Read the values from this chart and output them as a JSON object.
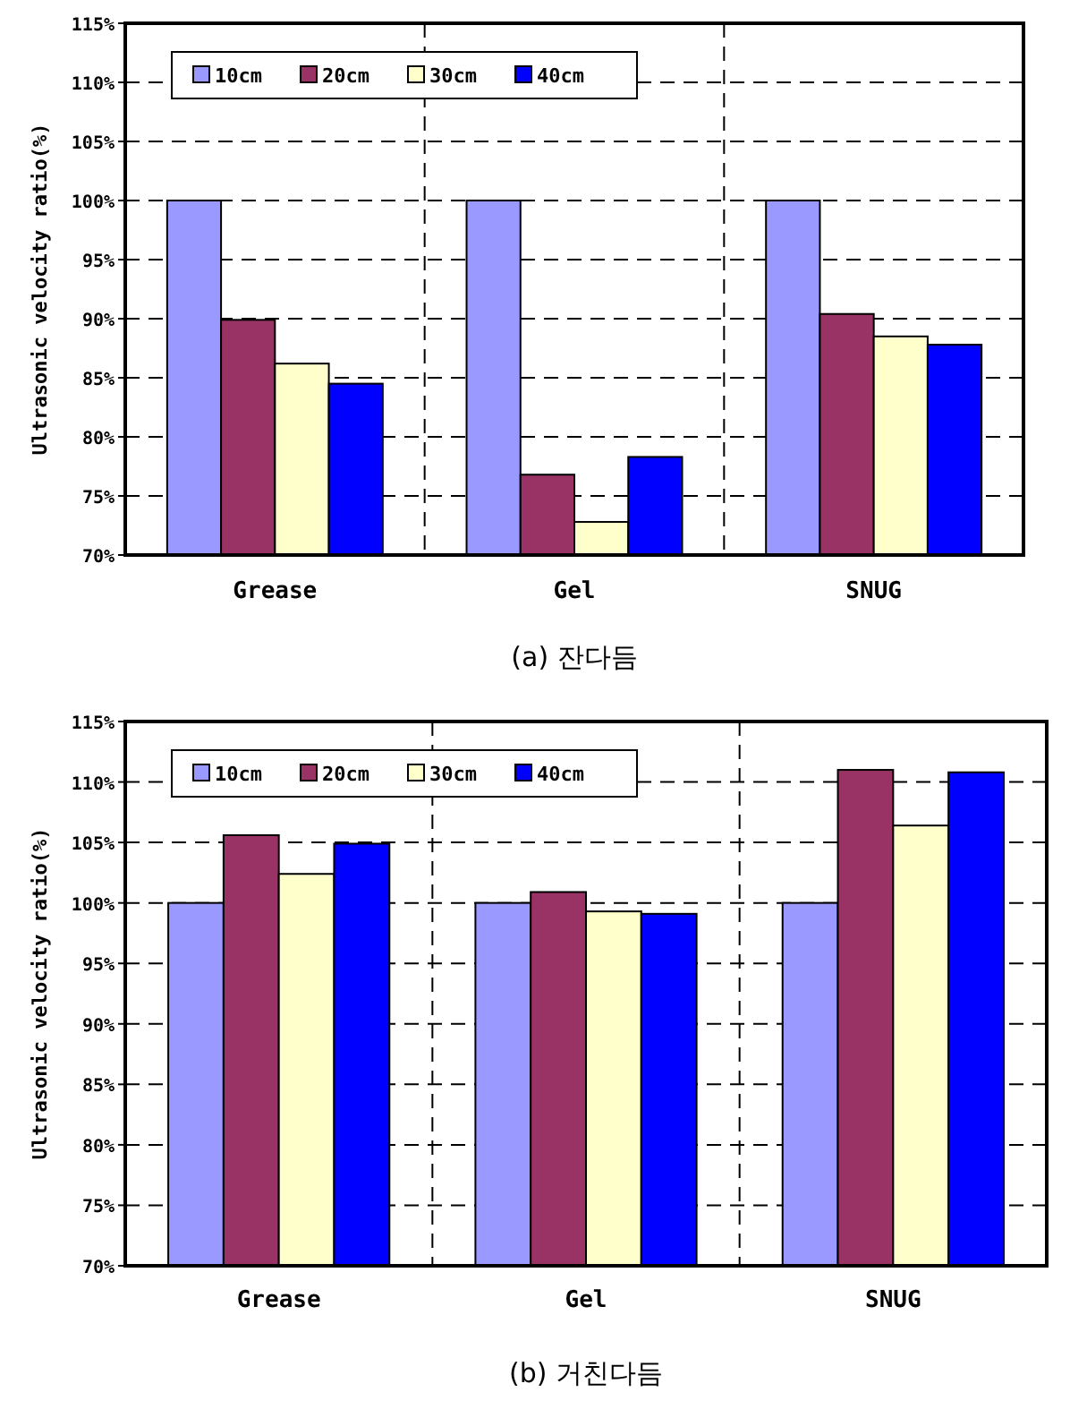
{
  "chart_data": [
    {
      "type": "bar",
      "title": "(a) 잔다듬",
      "ylabel": "Ultrasonic velocity ratio(%)",
      "categories": [
        "Grease",
        "Gel",
        "SNUG"
      ],
      "series": [
        {
          "name": "10cm",
          "color": "#9999ff",
          "values": [
            100,
            100,
            100
          ]
        },
        {
          "name": "20cm",
          "color": "#993366",
          "values": [
            89.9,
            76.8,
            90.4
          ]
        },
        {
          "name": "30cm",
          "color": "#ffffcc",
          "values": [
            86.2,
            72.8,
            88.5
          ]
        },
        {
          "name": "40cm",
          "color": "#0000ff",
          "values": [
            84.5,
            78.3,
            87.8
          ]
        }
      ],
      "ylim": [
        70,
        115
      ],
      "yticks": [
        {
          "value": 70,
          "label": "70%"
        },
        {
          "value": 75,
          "label": "75%"
        },
        {
          "value": 80,
          "label": "80%"
        },
        {
          "value": 85,
          "label": "85%"
        },
        {
          "value": 90,
          "label": "90%"
        },
        {
          "value": 95,
          "label": "95%"
        },
        {
          "value": 100,
          "label": "100%"
        },
        {
          "value": 105,
          "label": "105%"
        },
        {
          "value": 110,
          "label": "110%"
        },
        {
          "value": 115,
          "label": "115%"
        }
      ],
      "grid": true,
      "legend": "top left"
    },
    {
      "type": "bar",
      "title": "(b) 거친다듬",
      "ylabel": "Ultrasonic velocity ratio(%)",
      "categories": [
        "Grease",
        "Gel",
        "SNUG"
      ],
      "series": [
        {
          "name": "10cm",
          "color": "#9999ff",
          "values": [
            100,
            100,
            100
          ]
        },
        {
          "name": "20cm",
          "color": "#993366",
          "values": [
            105.6,
            100.9,
            111.0
          ]
        },
        {
          "name": "30cm",
          "color": "#ffffcc",
          "values": [
            102.4,
            99.3,
            106.4
          ]
        },
        {
          "name": "40cm",
          "color": "#0000ff",
          "values": [
            104.9,
            99.1,
            110.8
          ]
        }
      ],
      "ylim": [
        70,
        115
      ],
      "yticks": [
        {
          "value": 70,
          "label": "70%"
        },
        {
          "value": 75,
          "label": "75%"
        },
        {
          "value": 80,
          "label": "80%"
        },
        {
          "value": 85,
          "label": "85%"
        },
        {
          "value": 90,
          "label": "90%"
        },
        {
          "value": 95,
          "label": "95%"
        },
        {
          "value": 100,
          "label": "100%"
        },
        {
          "value": 105,
          "label": "105%"
        },
        {
          "value": 110,
          "label": "110%"
        },
        {
          "value": 115,
          "label": "115%"
        }
      ],
      "grid": true,
      "legend": "top left"
    }
  ]
}
